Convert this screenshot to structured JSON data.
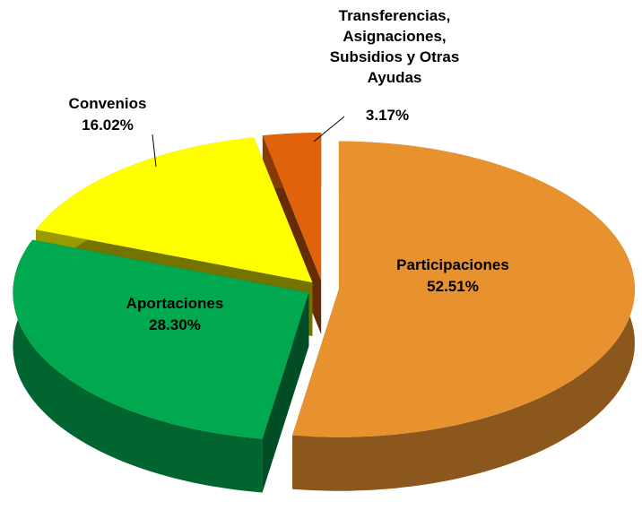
{
  "chart_data": {
    "type": "pie",
    "three_d": true,
    "exploded": true,
    "categories": [
      "Participaciones",
      "Aportaciones",
      "Convenios",
      "Transferencias,\nAsignaciones,\nSubsidios y Otras\nAyudas"
    ],
    "values": [
      52.51,
      28.3,
      16.02,
      3.17
    ],
    "value_labels": [
      "52.51%",
      "28.30%",
      "16.02%",
      "3.17%"
    ],
    "colors": [
      "#e8912f",
      "#00a84f",
      "#ffff00",
      "#e0620b"
    ]
  }
}
